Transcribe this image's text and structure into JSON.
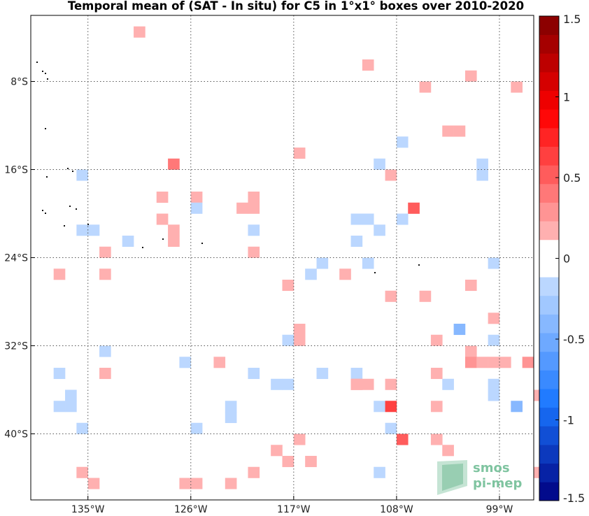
{
  "chart_data": {
    "type": "heatmap",
    "title": "Temporal mean of (SAT - In situ) for C5 in 1°x1° boxes over 2010-2020",
    "lon_range": [
      -140,
      -96
    ],
    "lat_range": [
      -46,
      -2
    ],
    "x_ticks": [
      {
        "lon": -135,
        "label": "135°W"
      },
      {
        "lon": -126,
        "label": "126°W"
      },
      {
        "lon": -117,
        "label": "117°W"
      },
      {
        "lon": -108,
        "label": "108°W"
      },
      {
        "lon": -99,
        "label": "99°W"
      }
    ],
    "y_ticks": [
      {
        "lat": -8,
        "label": "8°S"
      },
      {
        "lat": -16,
        "label": "16°S"
      },
      {
        "lat": -24,
        "label": "24°S"
      },
      {
        "lat": -32,
        "label": "32°S"
      },
      {
        "lat": -40,
        "label": "40°S"
      }
    ],
    "grid": true,
    "colorbar": {
      "range": [
        -1.5,
        1.5
      ],
      "ticks": [
        {
          "value": 1.5,
          "label": "1.5"
        },
        {
          "value": 1,
          "label": "1"
        },
        {
          "value": 0.5,
          "label": "0.5"
        },
        {
          "value": 0,
          "label": "0"
        },
        {
          "value": -0.5,
          "label": "-0.5"
        },
        {
          "value": -1,
          "label": "-1"
        },
        {
          "value": -1.5,
          "label": "-1.5"
        }
      ]
    },
    "cells": [
      {
        "lon": -131,
        "lat": -3,
        "v": 0.2
      },
      {
        "lon": -111,
        "lat": -6,
        "v": 0.2
      },
      {
        "lon": -102,
        "lat": -7,
        "v": 0.2
      },
      {
        "lon": -106,
        "lat": -8,
        "v": 0.2
      },
      {
        "lon": -98,
        "lat": -8,
        "v": 0.2
      },
      {
        "lon": -104,
        "lat": -12,
        "v": 0.2
      },
      {
        "lon": -103,
        "lat": -12,
        "v": 0.2
      },
      {
        "lon": -108,
        "lat": -13,
        "v": -0.15
      },
      {
        "lon": -117,
        "lat": -14,
        "v": 0.2
      },
      {
        "lon": -128,
        "lat": -15,
        "v": 0.4
      },
      {
        "lon": -110,
        "lat": -15,
        "v": -0.15
      },
      {
        "lon": -101,
        "lat": -15,
        "v": -0.15
      },
      {
        "lon": -136,
        "lat": -16,
        "v": -0.15
      },
      {
        "lon": -109,
        "lat": -16,
        "v": 0.2
      },
      {
        "lon": -101,
        "lat": -16,
        "v": -0.15
      },
      {
        "lon": -129,
        "lat": -18,
        "v": 0.2
      },
      {
        "lon": -126,
        "lat": -18,
        "v": 0.2
      },
      {
        "lon": -121,
        "lat": -18,
        "v": 0.2
      },
      {
        "lon": -126,
        "lat": -19,
        "v": -0.15
      },
      {
        "lon": -122,
        "lat": -19,
        "v": 0.2
      },
      {
        "lon": -121,
        "lat": -19,
        "v": 0.2
      },
      {
        "lon": -107,
        "lat": -19,
        "v": 0.5
      },
      {
        "lon": -129,
        "lat": -20,
        "v": 0.2
      },
      {
        "lon": -112,
        "lat": -20,
        "v": -0.15
      },
      {
        "lon": -111,
        "lat": -20,
        "v": -0.15
      },
      {
        "lon": -108,
        "lat": -20,
        "v": -0.15
      },
      {
        "lon": -136,
        "lat": -21,
        "v": -0.15
      },
      {
        "lon": -135,
        "lat": -21,
        "v": -0.15
      },
      {
        "lon": -128,
        "lat": -21,
        "v": 0.2
      },
      {
        "lon": -121,
        "lat": -21,
        "v": -0.15
      },
      {
        "lon": -110,
        "lat": -21,
        "v": -0.15
      },
      {
        "lon": -132,
        "lat": -22,
        "v": -0.15
      },
      {
        "lon": -128,
        "lat": -22,
        "v": 0.2
      },
      {
        "lon": -112,
        "lat": -22,
        "v": -0.15
      },
      {
        "lon": -134,
        "lat": -23,
        "v": 0.2
      },
      {
        "lon": -121,
        "lat": -23,
        "v": 0.2
      },
      {
        "lon": -115,
        "lat": -24,
        "v": -0.15
      },
      {
        "lon": -111,
        "lat": -24,
        "v": -0.15
      },
      {
        "lon": -100,
        "lat": -24,
        "v": -0.15
      },
      {
        "lon": -138,
        "lat": -25,
        "v": 0.2
      },
      {
        "lon": -134,
        "lat": -25,
        "v": 0.2
      },
      {
        "lon": -116,
        "lat": -25,
        "v": -0.15
      },
      {
        "lon": -113,
        "lat": -25,
        "v": 0.2
      },
      {
        "lon": -118,
        "lat": -26,
        "v": 0.2
      },
      {
        "lon": -102,
        "lat": -26,
        "v": 0.2
      },
      {
        "lon": -109,
        "lat": -27,
        "v": 0.2
      },
      {
        "lon": -106,
        "lat": -27,
        "v": 0.2
      },
      {
        "lon": -100,
        "lat": -29,
        "v": 0.2
      },
      {
        "lon": -117,
        "lat": -30,
        "v": 0.2
      },
      {
        "lon": -103,
        "lat": -30,
        "v": -0.35
      },
      {
        "lon": -117,
        "lat": -31,
        "v": 0.2
      },
      {
        "lon": -118,
        "lat": -31,
        "v": -0.15
      },
      {
        "lon": -105,
        "lat": -31,
        "v": 0.2
      },
      {
        "lon": -100,
        "lat": -31,
        "v": -0.15
      },
      {
        "lon": -134,
        "lat": -32,
        "v": -0.15
      },
      {
        "lon": -102,
        "lat": -32,
        "v": 0.2
      },
      {
        "lon": -127,
        "lat": -33,
        "v": -0.15
      },
      {
        "lon": -124,
        "lat": -33,
        "v": 0.2
      },
      {
        "lon": -102,
        "lat": -33,
        "v": 0.3
      },
      {
        "lon": -101,
        "lat": -33,
        "v": 0.2
      },
      {
        "lon": -100,
        "lat": -33,
        "v": 0.2
      },
      {
        "lon": -99,
        "lat": -33,
        "v": 0.2
      },
      {
        "lon": -97,
        "lat": -33,
        "v": 0.3
      },
      {
        "lon": -138,
        "lat": -34,
        "v": -0.15
      },
      {
        "lon": -134,
        "lat": -34,
        "v": 0.2
      },
      {
        "lon": -121,
        "lat": -34,
        "v": -0.15
      },
      {
        "lon": -115,
        "lat": -34,
        "v": -0.15
      },
      {
        "lon": -112,
        "lat": -34,
        "v": -0.15
      },
      {
        "lon": -105,
        "lat": -34,
        "v": 0.2
      },
      {
        "lon": -119,
        "lat": -35,
        "v": -0.15
      },
      {
        "lon": -118,
        "lat": -35,
        "v": -0.15
      },
      {
        "lon": -112,
        "lat": -35,
        "v": 0.2
      },
      {
        "lon": -112,
        "lat": -35,
        "v": 0.2
      },
      {
        "lon": -111,
        "lat": -35,
        "v": 0.2
      },
      {
        "lon": -109,
        "lat": -35,
        "v": 0.2
      },
      {
        "lon": -104,
        "lat": -35,
        "v": -0.15
      },
      {
        "lon": -100,
        "lat": -35,
        "v": -0.15
      },
      {
        "lon": -137,
        "lat": -36,
        "v": -0.15
      },
      {
        "lon": -100,
        "lat": -36,
        "v": -0.15
      },
      {
        "lon": -96,
        "lat": -36,
        "v": 0.2
      },
      {
        "lon": -138,
        "lat": -37,
        "v": -0.15
      },
      {
        "lon": -137,
        "lat": -37,
        "v": -0.15
      },
      {
        "lon": -123,
        "lat": -37,
        "v": -0.15
      },
      {
        "lon": -110,
        "lat": -37,
        "v": -0.15
      },
      {
        "lon": -109,
        "lat": -37,
        "v": 0.6
      },
      {
        "lon": -105,
        "lat": -37,
        "v": 0.2
      },
      {
        "lon": -98,
        "lat": -37,
        "v": -0.35
      },
      {
        "lon": -123,
        "lat": -38,
        "v": -0.15
      },
      {
        "lon": -136,
        "lat": -39,
        "v": -0.15
      },
      {
        "lon": -126,
        "lat": -39,
        "v": -0.15
      },
      {
        "lon": -109,
        "lat": -39,
        "v": -0.15
      },
      {
        "lon": -117,
        "lat": -40,
        "v": 0.2
      },
      {
        "lon": -108,
        "lat": -40,
        "v": 0.5
      },
      {
        "lon": -105,
        "lat": -40,
        "v": 0.2
      },
      {
        "lon": -119,
        "lat": -41,
        "v": 0.2
      },
      {
        "lon": -104,
        "lat": -41,
        "v": 0.2
      },
      {
        "lon": -118,
        "lat": -42,
        "v": 0.2
      },
      {
        "lon": -116,
        "lat": -42,
        "v": 0.2
      },
      {
        "lon": -136,
        "lat": -43,
        "v": 0.2
      },
      {
        "lon": -121,
        "lat": -43,
        "v": 0.2
      },
      {
        "lon": -110,
        "lat": -43,
        "v": -0.15
      },
      {
        "lon": -96,
        "lat": -43,
        "v": 0.2
      },
      {
        "lon": -135,
        "lat": -44,
        "v": 0.2
      },
      {
        "lon": -127,
        "lat": -44,
        "v": 0.2
      },
      {
        "lon": -126,
        "lat": -44,
        "v": 0.2
      },
      {
        "lon": -123,
        "lat": -44,
        "v": 0.2
      }
    ]
  },
  "logo": {
    "line1": "smos",
    "line2": "pi-mep",
    "color": "#7fc4a0"
  }
}
